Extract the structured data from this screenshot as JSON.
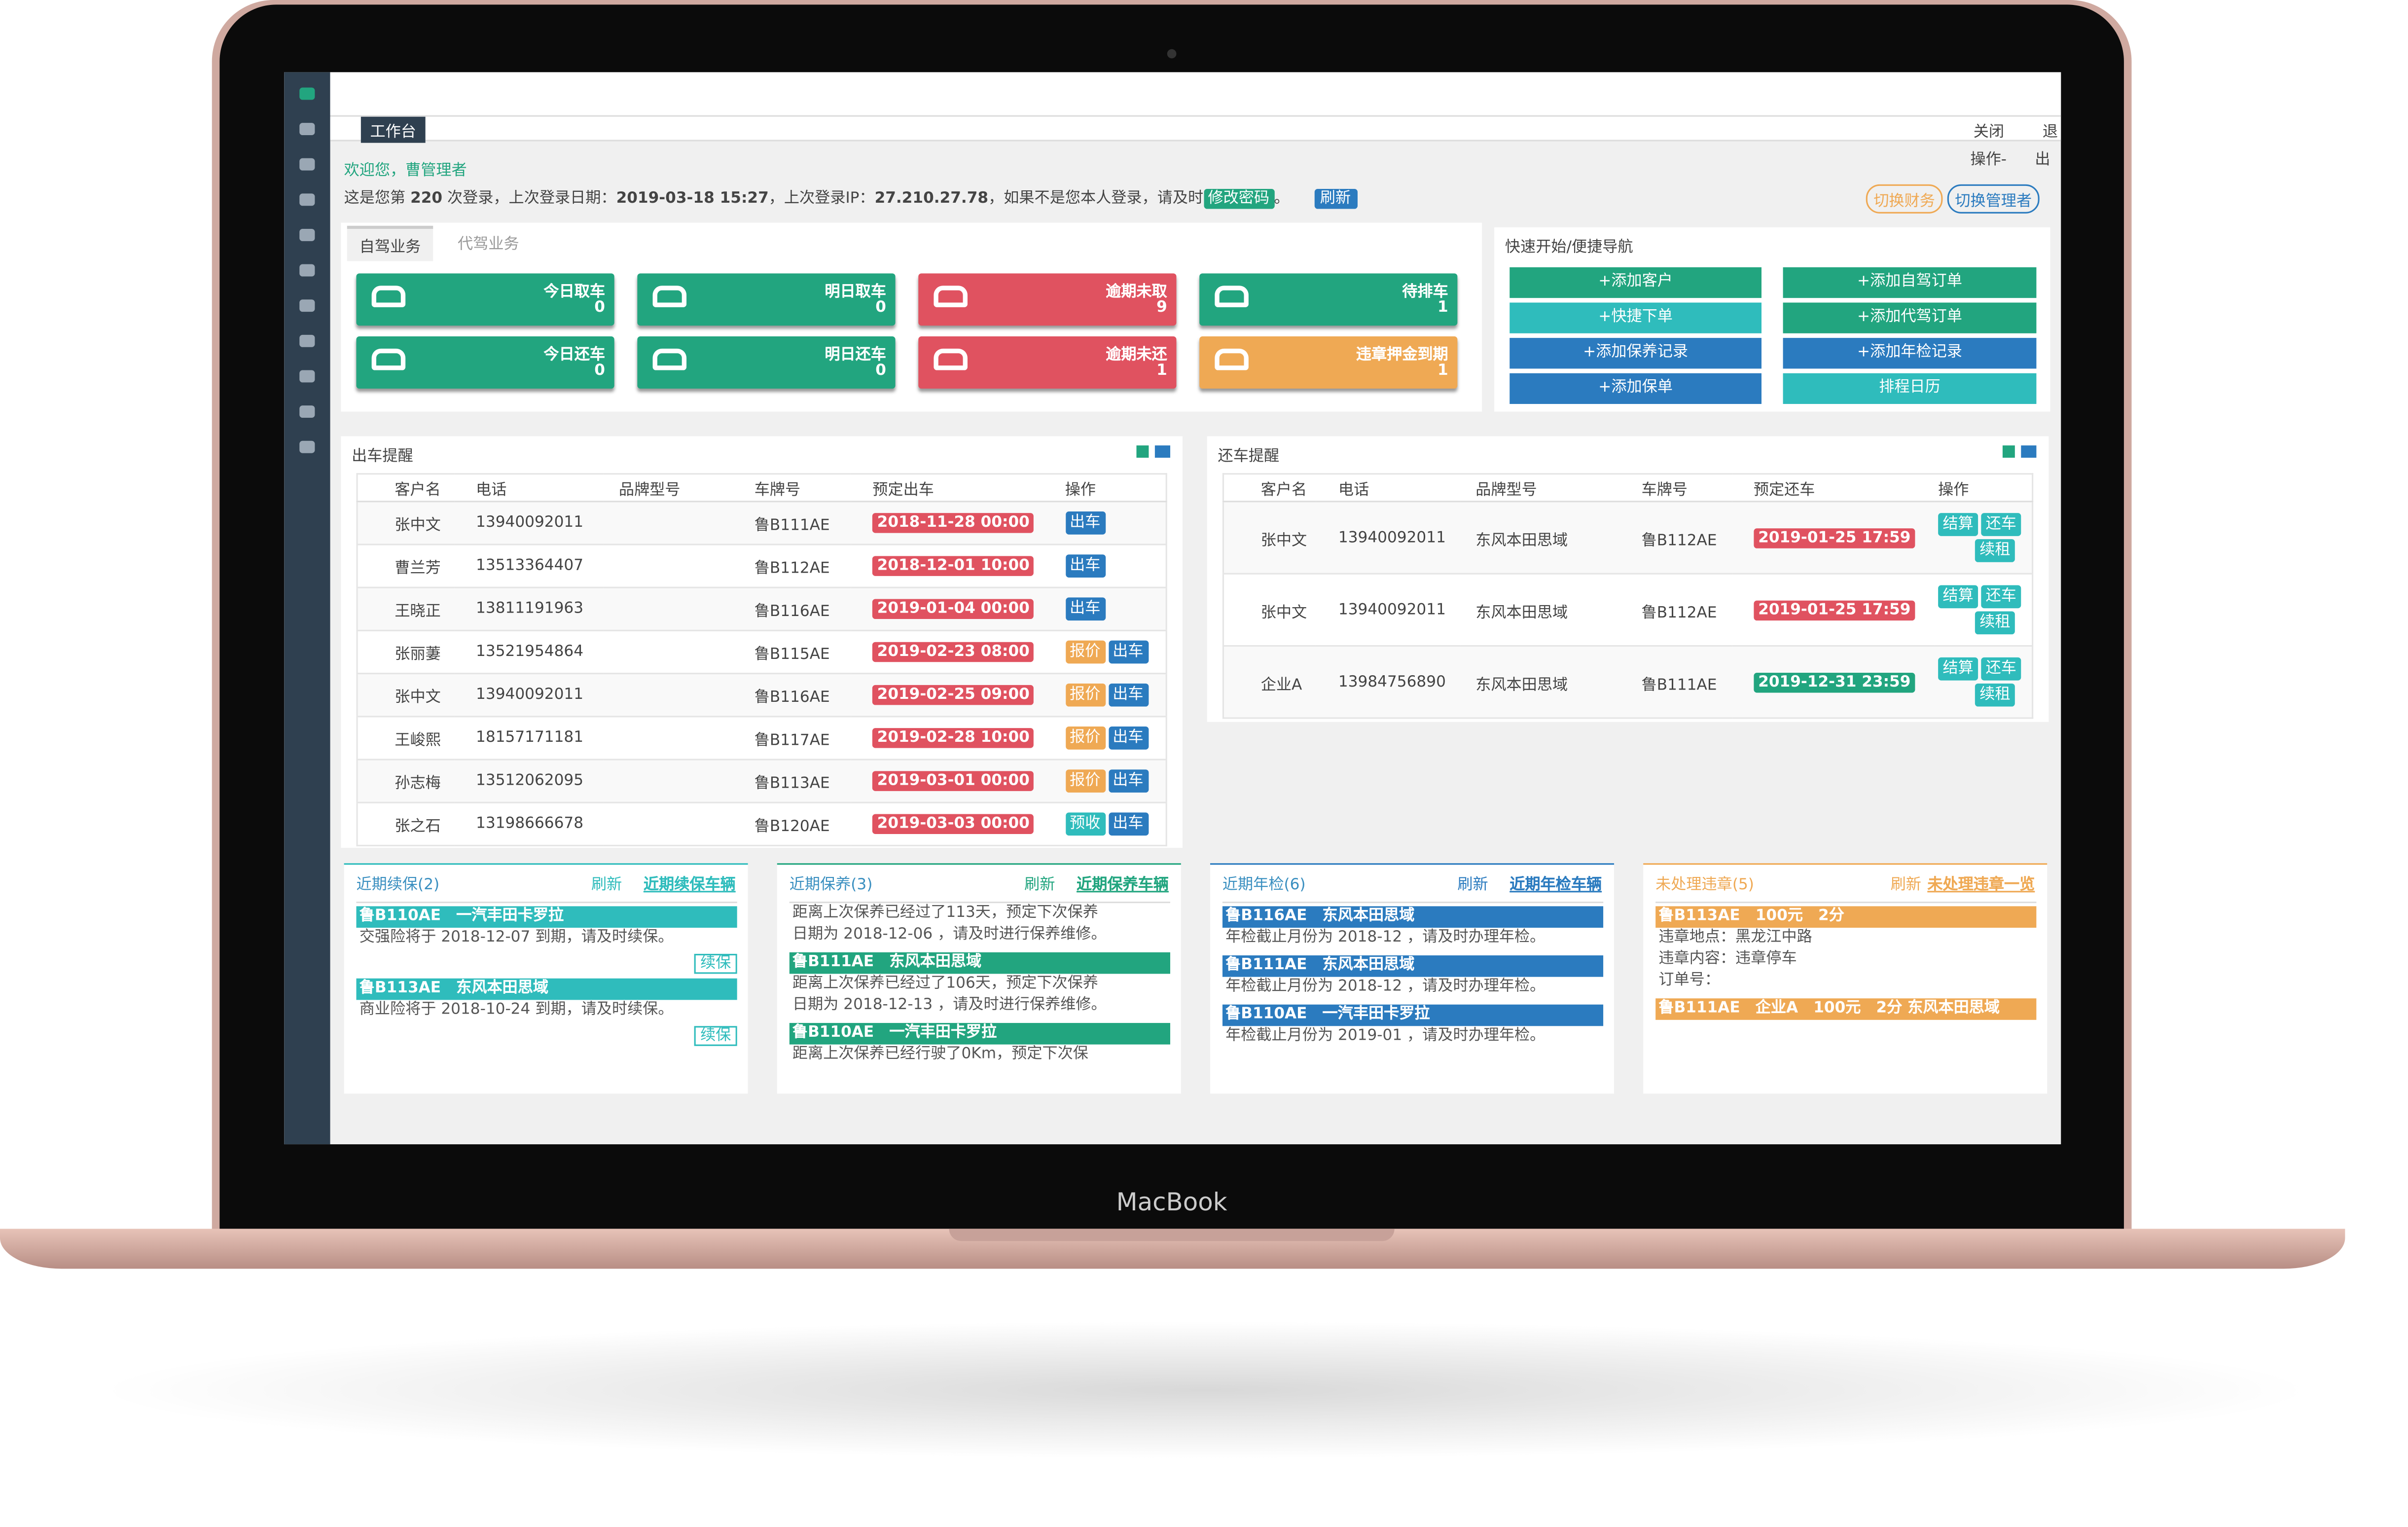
{
  "brand": "MacBook",
  "topbar": {
    "tab": "工作台",
    "close": "关闭",
    "logout": "退",
    "ops": "操作-",
    "exit": "出"
  },
  "welcome": "欢迎您，曹管理者",
  "login": {
    "t1": "这是您第 ",
    "count": "220",
    "t2": " 次登录，上次登录日期：",
    "date": "2019-03-18 15:27",
    "t3": "，上次登录IP：",
    "ip": "27.210.27.78",
    "t4": "，如果不是您本人登录，请及时",
    "button": "修改密码",
    "end": "。",
    "refresh": "刷新"
  },
  "switches": [
    "切换财务",
    "切换管理者"
  ],
  "biz_tabs": [
    "自驾业务",
    "代驾业务"
  ],
  "tiles": [
    {
      "label": "今日取车",
      "count": 0,
      "color": "#22a57f"
    },
    {
      "label": "明日取车",
      "count": 0,
      "color": "#22a57f"
    },
    {
      "label": "逾期未取",
      "count": 9,
      "color": "#e05260"
    },
    {
      "label": "待排车",
      "count": 1,
      "color": "#22a57f"
    },
    {
      "label": "今日还车",
      "count": 0,
      "color": "#22a57f"
    },
    {
      "label": "明日还车",
      "count": 0,
      "color": "#22a57f"
    },
    {
      "label": "逾期未还",
      "count": 1,
      "color": "#e05260"
    },
    {
      "label": "违章押金到期",
      "count": 1,
      "color": "#efa954"
    }
  ],
  "quick_nav": {
    "title": "快速开始/便捷导航",
    "buttons": [
      {
        "label": "+添加客户",
        "color": "#22a57f"
      },
      {
        "label": "+添加自驾订单",
        "color": "#22a57f"
      },
      {
        "label": "+快捷下单",
        "color": "#2fbcbc"
      },
      {
        "label": "+添加代驾订单",
        "color": "#22a57f"
      },
      {
        "label": "+添加保养记录",
        "color": "#2b7bbf"
      },
      {
        "label": "+添加年检记录",
        "color": "#2b7bbf"
      },
      {
        "label": "+添加保单",
        "color": "#2b7bbf"
      },
      {
        "label": "排程日历",
        "color": "#2fbcbc"
      }
    ]
  },
  "pickup": {
    "title": "出车提醒",
    "headers": [
      "客户名",
      "电话",
      "品牌型号",
      "车牌号",
      "预定出车",
      "操作"
    ],
    "rows": [
      {
        "name": "张中文",
        "phone": "13940092011",
        "plate": "鲁B111AE",
        "date": "2018-11-28 00:00",
        "date_color": "#e05260",
        "actions": [
          {
            "label": "出车",
            "color": "#2b7bbf"
          }
        ]
      },
      {
        "name": "曹兰芳",
        "phone": "13513364407",
        "plate": "鲁B112AE",
        "date": "2018-12-01 10:00",
        "date_color": "#e05260",
        "actions": [
          {
            "label": "出车",
            "color": "#2b7bbf"
          }
        ]
      },
      {
        "name": "王晓正",
        "phone": "13811191963",
        "plate": "鲁B116AE",
        "date": "2019-01-04 00:00",
        "date_color": "#e05260",
        "actions": [
          {
            "label": "出车",
            "color": "#2b7bbf"
          }
        ]
      },
      {
        "name": "张丽萋",
        "phone": "13521954864",
        "plate": "鲁B115AE",
        "date": "2019-02-23 08:00",
        "date_color": "#e05260",
        "actions": [
          {
            "label": "报价",
            "color": "#efa954"
          },
          {
            "label": "出车",
            "color": "#2b7bbf"
          }
        ]
      },
      {
        "name": "张中文",
        "phone": "13940092011",
        "plate": "鲁B116AE",
        "date": "2019-02-25 09:00",
        "date_color": "#e05260",
        "actions": [
          {
            "label": "报价",
            "color": "#efa954"
          },
          {
            "label": "出车",
            "color": "#2b7bbf"
          }
        ]
      },
      {
        "name": "王峻熙",
        "phone": "18157171181",
        "plate": "鲁B117AE",
        "date": "2019-02-28 10:00",
        "date_color": "#e05260",
        "actions": [
          {
            "label": "报价",
            "color": "#efa954"
          },
          {
            "label": "出车",
            "color": "#2b7bbf"
          }
        ]
      },
      {
        "name": "孙志梅",
        "phone": "13512062095",
        "plate": "鲁B113AE",
        "date": "2019-03-01 00:00",
        "date_color": "#e05260",
        "actions": [
          {
            "label": "报价",
            "color": "#efa954"
          },
          {
            "label": "出车",
            "color": "#2b7bbf"
          }
        ]
      },
      {
        "name": "张之石",
        "phone": "13198666678",
        "plate": "鲁B120AE",
        "date": "2019-03-03 00:00",
        "date_color": "#e05260",
        "actions": [
          {
            "label": "预收",
            "color": "#2fbcbc"
          },
          {
            "label": "出车",
            "color": "#2b7bbf"
          }
        ]
      }
    ]
  },
  "return": {
    "title": "还车提醒",
    "headers": [
      "客户名",
      "电话",
      "品牌型号",
      "车牌号",
      "预定还车",
      "操作"
    ],
    "rows": [
      {
        "name": "张中文",
        "phone": "13940092011",
        "brand": "东风本田思域",
        "plate": "鲁B112AE",
        "date": "2019-01-25 17:59",
        "date_color": "#e05260",
        "actions": [
          {
            "label": "结算",
            "color": "#2fbcbc"
          },
          {
            "label": "还车",
            "color": "#2fbcbc"
          },
          {
            "label": "续租",
            "color": "#2fbcbc"
          }
        ]
      },
      {
        "name": "张中文",
        "phone": "13940092011",
        "brand": "东风本田思域",
        "plate": "鲁B112AE",
        "date": "2019-01-25 17:59",
        "date_color": "#e05260",
        "actions": [
          {
            "label": "结算",
            "color": "#2fbcbc"
          },
          {
            "label": "还车",
            "color": "#2fbcbc"
          },
          {
            "label": "续租",
            "color": "#2fbcbc"
          }
        ]
      },
      {
        "name": "企业A",
        "phone": "13984756890",
        "brand": "东风本田思域",
        "plate": "鲁B111AE",
        "date": "2019-12-31 23:59",
        "date_color": "#22a57f",
        "actions": [
          {
            "label": "结算",
            "color": "#2fbcbc"
          },
          {
            "label": "还车",
            "color": "#2fbcbc"
          },
          {
            "label": "续租",
            "color": "#2fbcbc"
          }
        ]
      }
    ]
  },
  "panels": [
    {
      "title": "近期续保",
      "count": "(2)",
      "refresh": "刷新",
      "link": "近期续保车辆",
      "color": "#2fbcbc",
      "items": [
        {
          "head": "鲁B110AE　一汽丰田卡罗拉",
          "lines": [
            "交强险将于 2018-12-07 到期，请及时续保。"
          ],
          "button": "续保"
        },
        {
          "head": "鲁B113AE　东风本田思域",
          "lines": [
            "商业险将于 2018-10-24 到期，请及时续保。"
          ],
          "button": "续保"
        }
      ]
    },
    {
      "title": "近期保养",
      "count": "(3)",
      "refresh": "刷新",
      "link": "近期保养车辆",
      "color": "#22a57f",
      "items": [
        {
          "lines": [
            "距离上次保养已经过了113天，预定下次保养",
            "日期为 2018-12-06 ，请及时进行保养维修。"
          ]
        },
        {
          "head": "鲁B111AE　东风本田思域",
          "lines": [
            "距离上次保养已经过了106天，预定下次保养",
            "日期为 2018-12-13 ，请及时进行保养维修。"
          ]
        },
        {
          "head": "鲁B110AE　一汽丰田卡罗拉",
          "lines": [
            "距离上次保养已经行驶了0Km，预定下次保"
          ]
        }
      ]
    },
    {
      "title": "近期年检",
      "count": "(6)",
      "refresh": "刷新",
      "link": "近期年检车辆",
      "color": "#2b7bbf",
      "items": [
        {
          "head": "鲁B116AE　东风本田思域",
          "lines": [
            "年检截止月份为 2018-12 ，请及时办理年检。"
          ]
        },
        {
          "head": "鲁B111AE　东风本田思域",
          "lines": [
            "年检截止月份为 2018-12 ，请及时办理年检。"
          ]
        },
        {
          "head": "鲁B110AE　一汽丰田卡罗拉",
          "lines": [
            "年检截止月份为 2019-01 ，请及时办理年检。"
          ]
        }
      ]
    },
    {
      "title": "未处理违章",
      "count": "(5)",
      "refresh": "刷新",
      "link": "未处理违章一览",
      "color": "#efa954",
      "items": [
        {
          "head": "鲁B113AE　100元　2分",
          "lines": [
            "违章地点：黑龙江中路",
            "违章内容：违章停车",
            "订单号："
          ]
        },
        {
          "head": "鲁B111AE　企业A　100元　2分 东风本田思域",
          "lines": []
        }
      ]
    }
  ]
}
